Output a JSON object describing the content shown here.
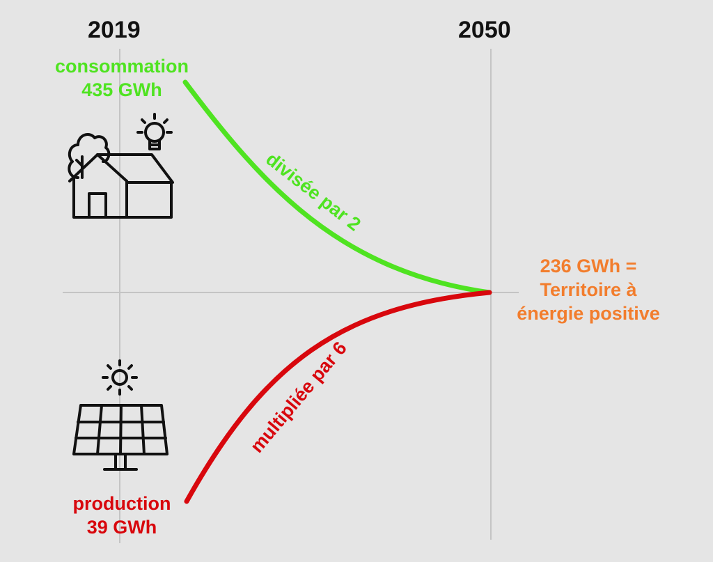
{
  "years": {
    "start": "2019",
    "end": "2050"
  },
  "consumption": {
    "label": "consommation",
    "value": "435 GWh",
    "trend": "divisée par 2",
    "color": "#4fe321"
  },
  "production": {
    "label": "production",
    "value": "39 GWh",
    "trend": "multipliée par 6",
    "color": "#d8070d"
  },
  "target": {
    "line1": "236 GWh =",
    "line2": "Territoire à",
    "line3": "énergie positive",
    "color": "#f27d2d"
  },
  "icons": {
    "house": "house-with-lightbulb-icon",
    "solar": "solar-panel-with-sun-icon"
  }
}
